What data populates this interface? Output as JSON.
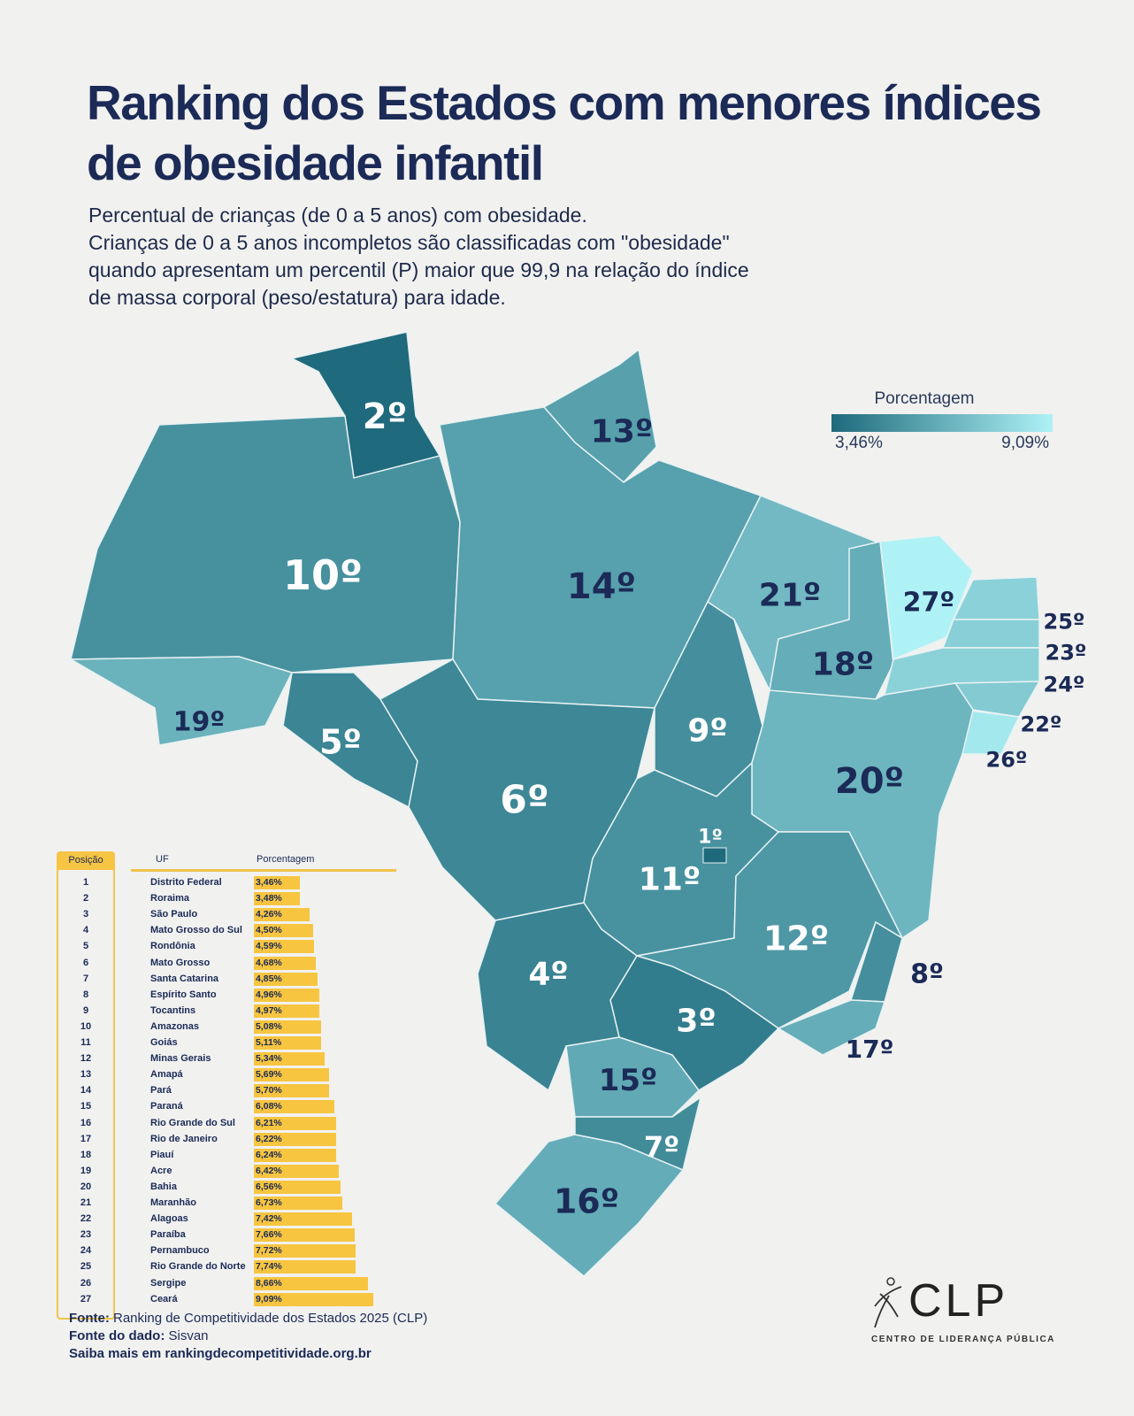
{
  "title": "Ranking dos Estados com menores índices de obesidade infantil",
  "subtitle_lines": [
    "Percentual de crianças (de 0 a 5 anos) com obesidade.",
    "Crianças de 0 a 5 anos incompletos são classificadas com \"obesidade\"",
    "quando apresentam um percentil (P) maior que 99,9 na relação do índice",
    "de massa corporal (peso/estatura) para idade."
  ],
  "legend": {
    "title": "Porcentagem",
    "min_label": "3,46%",
    "max_label": "9,09%",
    "min": 3.46,
    "max": 9.09,
    "color_min": "#1e6a7c",
    "color_max": "#aef2f6"
  },
  "table": {
    "headers": {
      "position": "Posição",
      "uf": "UF",
      "percent": "Porcentagem"
    },
    "bar_color": "#f7c540",
    "rows": [
      {
        "pos": "1",
        "uf": "Distrito Federal",
        "label": "3,46%",
        "value": 3.46,
        "code": "DF",
        "rank": "1º"
      },
      {
        "pos": "2",
        "uf": "Roraima",
        "label": "3,48%",
        "value": 3.48,
        "code": "RR",
        "rank": "2º"
      },
      {
        "pos": "3",
        "uf": "São Paulo",
        "label": "4,26%",
        "value": 4.26,
        "code": "SP",
        "rank": "3º"
      },
      {
        "pos": "4",
        "uf": "Mato Grosso do Sul",
        "label": "4,50%",
        "value": 4.5,
        "code": "MS",
        "rank": "4º"
      },
      {
        "pos": "5",
        "uf": "Rondônia",
        "label": "4,59%",
        "value": 4.59,
        "code": "RO",
        "rank": "5º"
      },
      {
        "pos": "6",
        "uf": "Mato Grosso",
        "label": "4,68%",
        "value": 4.68,
        "code": "MT",
        "rank": "6º"
      },
      {
        "pos": "7",
        "uf": "Santa Catarina",
        "label": "4,85%",
        "value": 4.85,
        "code": "SC",
        "rank": "7º"
      },
      {
        "pos": "8",
        "uf": "Espírito Santo",
        "label": "4,96%",
        "value": 4.96,
        "code": "ES",
        "rank": "8º"
      },
      {
        "pos": "9",
        "uf": "Tocantins",
        "label": "4,97%",
        "value": 4.97,
        "code": "TO",
        "rank": "9º"
      },
      {
        "pos": "10",
        "uf": "Amazonas",
        "label": "5,08%",
        "value": 5.08,
        "code": "AM",
        "rank": "10º"
      },
      {
        "pos": "11",
        "uf": "Goiás",
        "label": "5,11%",
        "value": 5.11,
        "code": "GO",
        "rank": "11º"
      },
      {
        "pos": "12",
        "uf": "Minas Gerais",
        "label": "5,34%",
        "value": 5.34,
        "code": "MG",
        "rank": "12º"
      },
      {
        "pos": "13",
        "uf": "Amapá",
        "label": "5,69%",
        "value": 5.69,
        "code": "AP",
        "rank": "13º"
      },
      {
        "pos": "14",
        "uf": "Pará",
        "label": "5,70%",
        "value": 5.7,
        "code": "PA",
        "rank": "14º"
      },
      {
        "pos": "15",
        "uf": "Paraná",
        "label": "6,08%",
        "value": 6.08,
        "code": "PR",
        "rank": "15º"
      },
      {
        "pos": "16",
        "uf": "Rio Grande do Sul",
        "label": "6,21%",
        "value": 6.21,
        "code": "RS",
        "rank": "16º"
      },
      {
        "pos": "17",
        "uf": "Rio de Janeiro",
        "label": "6,22%",
        "value": 6.22,
        "code": "RJ",
        "rank": "17º"
      },
      {
        "pos": "18",
        "uf": "Piauí",
        "label": "6,24%",
        "value": 6.24,
        "code": "PI",
        "rank": "18º"
      },
      {
        "pos": "19",
        "uf": "Acre",
        "label": "6,42%",
        "value": 6.42,
        "code": "AC",
        "rank": "19º"
      },
      {
        "pos": "20",
        "uf": "Bahia",
        "label": "6,56%",
        "value": 6.56,
        "code": "BA",
        "rank": "20º"
      },
      {
        "pos": "21",
        "uf": "Maranhão",
        "label": "6,73%",
        "value": 6.73,
        "code": "MA",
        "rank": "21º"
      },
      {
        "pos": "22",
        "uf": "Alagoas",
        "label": "7,42%",
        "value": 7.42,
        "code": "AL",
        "rank": "22º"
      },
      {
        "pos": "23",
        "uf": "Paraíba",
        "label": "7,66%",
        "value": 7.66,
        "code": "PB",
        "rank": "23º"
      },
      {
        "pos": "24",
        "uf": "Pernambuco",
        "label": "7,72%",
        "value": 7.72,
        "code": "PE",
        "rank": "24º"
      },
      {
        "pos": "25",
        "uf": "Rio Grande do Norte",
        "label": "7,74%",
        "value": 7.74,
        "code": "RN",
        "rank": "25º"
      },
      {
        "pos": "26",
        "uf": "Sergipe",
        "label": "8,66%",
        "value": 8.66,
        "code": "SE",
        "rank": "26º"
      },
      {
        "pos": "27",
        "uf": "Ceará",
        "label": "9,09%",
        "value": 9.09,
        "code": "CE",
        "rank": "27º"
      }
    ]
  },
  "source": {
    "fonte_label": "Fonte:",
    "fonte": "Ranking de Competitividade dos Estados 2025 (CLP)",
    "dado_label": "Fonte do dado:",
    "dado": "Sisvan",
    "more": "Saiba mais em rankingdecompetitividade.org.br"
  },
  "logo": {
    "name": "CLP",
    "subtitle": "CENTRO DE LIDERANÇA PÚBLICA"
  }
}
